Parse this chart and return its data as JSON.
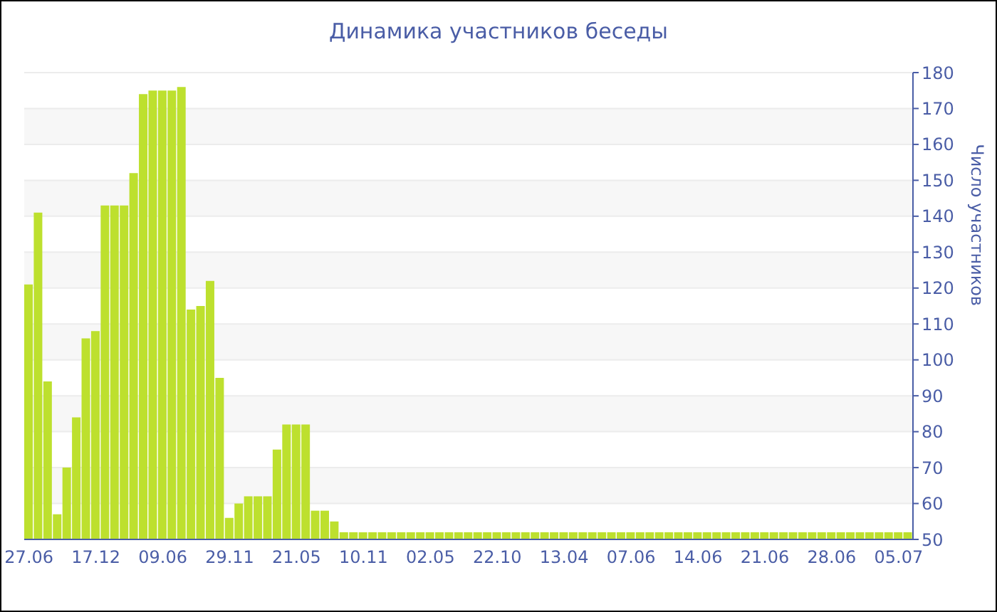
{
  "chart_data": {
    "type": "bar",
    "title": "Динамика участников беседы",
    "ylabel": "Число участников",
    "categories": [
      "27.06",
      null,
      null,
      null,
      null,
      null,
      null,
      "17.12",
      null,
      null,
      null,
      null,
      null,
      null,
      "09.06",
      null,
      null,
      null,
      null,
      null,
      null,
      "29.11",
      null,
      null,
      null,
      null,
      null,
      null,
      "21.05",
      null,
      null,
      null,
      null,
      null,
      null,
      "10.11",
      null,
      null,
      null,
      null,
      null,
      null,
      "02.05",
      null,
      null,
      null,
      null,
      null,
      null,
      "22.10",
      null,
      null,
      null,
      null,
      null,
      null,
      "13.04",
      null,
      null,
      null,
      null,
      null,
      null,
      "07.06",
      null,
      null,
      null,
      null,
      null,
      null,
      "14.06",
      null,
      null,
      null,
      null,
      null,
      null,
      "21.06",
      null,
      null,
      null,
      null,
      null,
      null,
      "28.06",
      null,
      null,
      null,
      null,
      null,
      null,
      "05.07",
      null
    ],
    "values": [
      121,
      141,
      94,
      57,
      70,
      84,
      106,
      108,
      143,
      143,
      143,
      152,
      174,
      175,
      175,
      175,
      176,
      114,
      115,
      122,
      95,
      56,
      60,
      62,
      62,
      62,
      75,
      82,
      82,
      82,
      58,
      58,
      55,
      52,
      52,
      52,
      52,
      52,
      52,
      52,
      52,
      52,
      52,
      52,
      52,
      52,
      52,
      52,
      52,
      52,
      52,
      52,
      52,
      52,
      52,
      52,
      52,
      52,
      52,
      52,
      52,
      52,
      52,
      52,
      52,
      52,
      52,
      52,
      52,
      52,
      52,
      52,
      52,
      52,
      52,
      52,
      52,
      52,
      52,
      52,
      52,
      52,
      52,
      52,
      52,
      52,
      52,
      52,
      52,
      52,
      52,
      52,
      52
    ],
    "color": "#bde02e",
    "ylim": [
      50,
      180
    ],
    "yticks": [
      50,
      60,
      70,
      80,
      90,
      100,
      110,
      120,
      130,
      140,
      150,
      160,
      170,
      180
    ],
    "grid": "y"
  }
}
